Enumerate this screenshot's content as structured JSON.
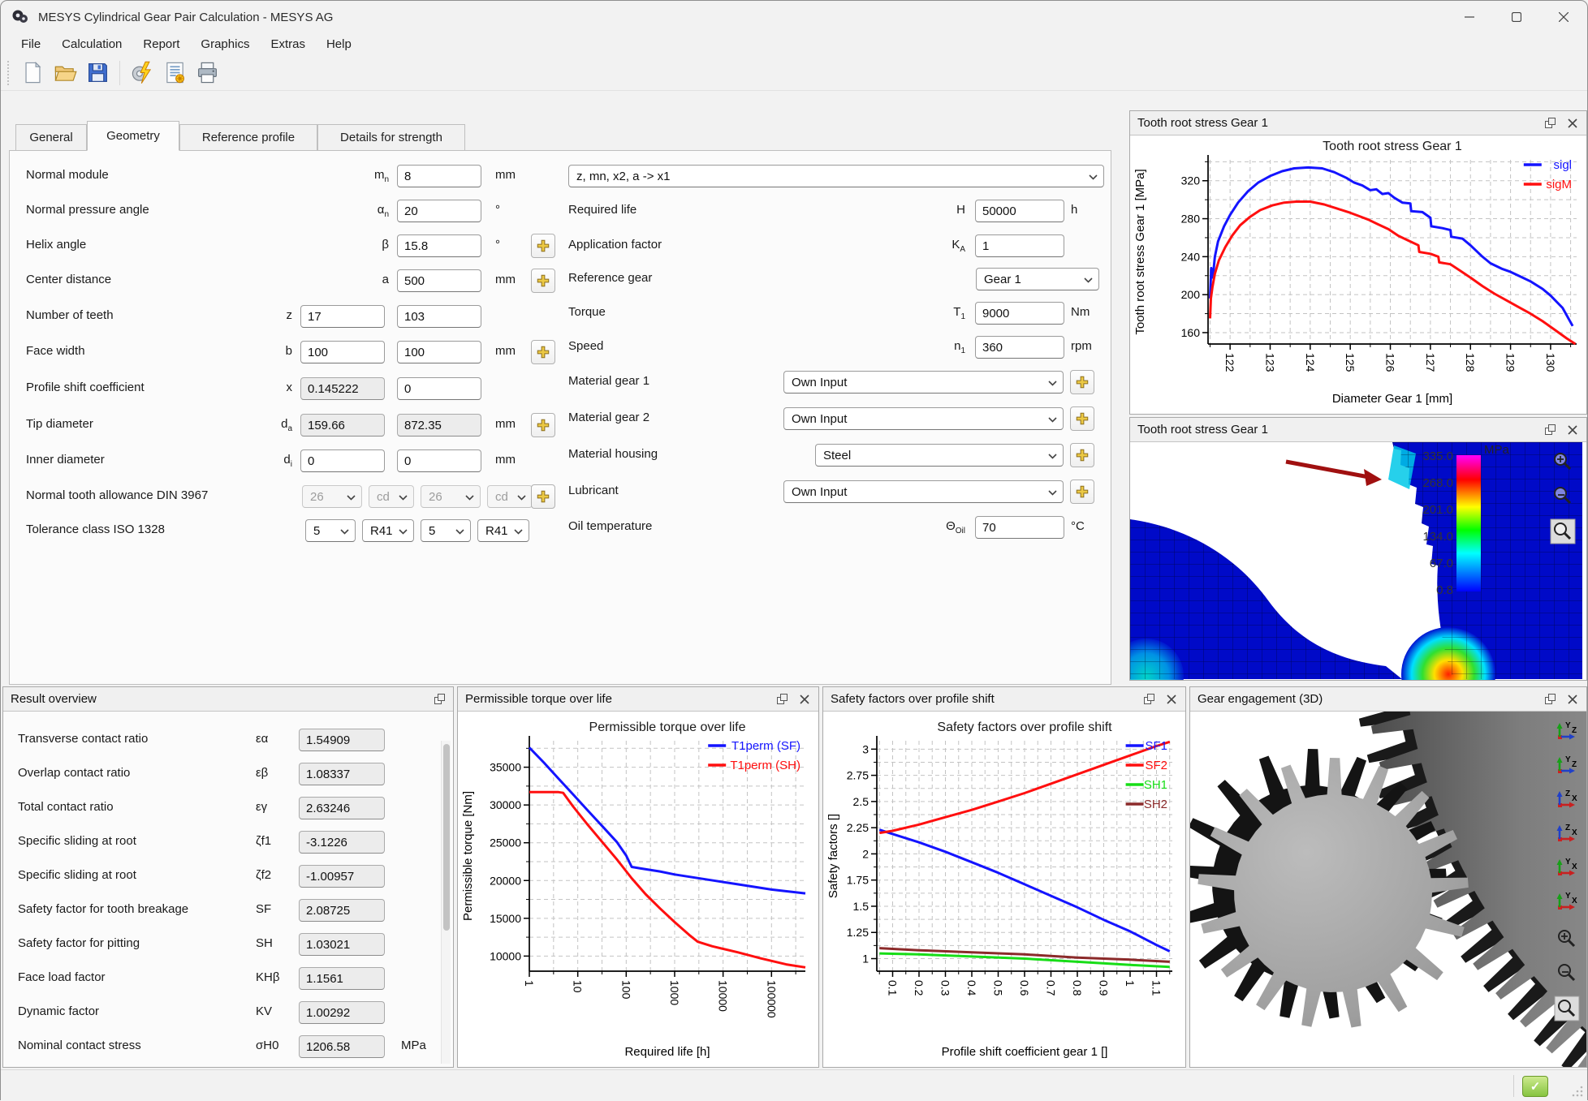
{
  "window": {
    "title": "MESYS Cylindrical Gear Pair Calculation - MESYS AG"
  },
  "menu": [
    "File",
    "Calculation",
    "Report",
    "Graphics",
    "Extras",
    "Help"
  ],
  "toolbar": [
    {
      "name": "new",
      "icon": "new-document-icon"
    },
    {
      "name": "open",
      "icon": "open-folder-icon"
    },
    {
      "name": "save",
      "icon": "save-icon"
    },
    {
      "name": "calculate",
      "icon": "calculate-lightning-icon"
    },
    {
      "name": "report",
      "icon": "report-document-icon"
    },
    {
      "name": "print",
      "icon": "print-icon"
    }
  ],
  "tabs": {
    "items": [
      "General",
      "Geometry",
      "Reference profile",
      "Details for strength"
    ],
    "active": "Geometry"
  },
  "form": {
    "calc_mode_dropdown": "z, mn, x2, a  -> x1",
    "left_rows": [
      {
        "label": "Normal module",
        "sym": {
          "t": "m",
          "s": "n"
        },
        "fields": [
          {
            "col": 2,
            "v": "8"
          }
        ],
        "unit": "mm",
        "plus": false
      },
      {
        "label": "Normal pressure angle",
        "sym": {
          "t": "α",
          "s": "n"
        },
        "fields": [
          {
            "col": 2,
            "v": "20"
          }
        ],
        "unit": "°",
        "plus": false
      },
      {
        "label": "Helix angle",
        "sym": {
          "t": "β",
          "s": ""
        },
        "fields": [
          {
            "col": 2,
            "v": "15.8"
          }
        ],
        "unit": "°",
        "plus": true
      },
      {
        "label": "Center distance",
        "sym": {
          "t": "a",
          "s": ""
        },
        "fields": [
          {
            "col": 2,
            "v": "500"
          }
        ],
        "unit": "mm",
        "plus": true
      },
      {
        "label": "Number of teeth",
        "sym": {
          "t": "z",
          "s": ""
        },
        "fields": [
          {
            "col": 1,
            "v": "17"
          },
          {
            "col": 2,
            "v": "103"
          }
        ],
        "unit": "",
        "plus": false
      },
      {
        "label": "Face width",
        "sym": {
          "t": "b",
          "s": ""
        },
        "fields": [
          {
            "col": 1,
            "v": "100"
          },
          {
            "col": 2,
            "v": "100"
          }
        ],
        "unit": "mm",
        "plus": true
      },
      {
        "label": "Profile shift coefficient",
        "sym": {
          "t": "x",
          "s": ""
        },
        "fields": [
          {
            "col": 1,
            "v": "0.145222",
            "ro": true
          },
          {
            "col": 2,
            "v": "0"
          }
        ],
        "unit": "",
        "plus": false
      },
      {
        "label": "Tip diameter",
        "sym": {
          "t": "d",
          "s": "a"
        },
        "fields": [
          {
            "col": 1,
            "v": "159.66",
            "ro": true
          },
          {
            "col": 2,
            "v": "872.35",
            "ro": true
          }
        ],
        "unit": "mm",
        "plus": true
      },
      {
        "label": "Inner diameter",
        "sym": {
          "t": "d",
          "s": "i"
        },
        "fields": [
          {
            "col": 1,
            "v": "0"
          },
          {
            "col": 2,
            "v": "0"
          }
        ],
        "unit": "mm",
        "plus": false
      },
      {
        "label": "Normal tooth allowance DIN 3967",
        "dropdowns": [
          "26",
          "cd",
          "26",
          "cd"
        ],
        "disabled": true,
        "plus": true
      },
      {
        "label": "Tolerance class ISO 1328",
        "dropdowns": [
          "5",
          "R41",
          "5",
          "R41"
        ],
        "disabled": false,
        "plus": false
      }
    ],
    "right_rows": [
      {
        "label": "Required life",
        "sym": {
          "t": "H",
          "s": ""
        },
        "type": "input",
        "v": "50000",
        "unit": "h"
      },
      {
        "label": "Application factor",
        "sym": {
          "t": "K",
          "s": "A"
        },
        "type": "input",
        "v": "1",
        "unit": ""
      },
      {
        "label": "Reference gear",
        "type": "select_small",
        "v": "Gear 1"
      },
      {
        "label": "Torque",
        "sym": {
          "t": "T",
          "s": "1"
        },
        "type": "input",
        "v": "9000",
        "unit": "Nm"
      },
      {
        "label": "Speed",
        "sym": {
          "t": "n",
          "s": "1"
        },
        "type": "input",
        "v": "360",
        "unit": "rpm"
      },
      {
        "label": "Material gear 1",
        "type": "select",
        "v": "Own Input",
        "plus": true
      },
      {
        "label": "Material gear 2",
        "type": "select",
        "v": "Own Input",
        "plus": true
      },
      {
        "label": "Material housing",
        "type": "select_indent",
        "v": "Steel",
        "plus": true
      },
      {
        "label": "Lubricant",
        "type": "select",
        "v": "Own Input",
        "plus": true
      },
      {
        "label": "Oil temperature",
        "sym": {
          "t": "Θ",
          "s": "Oil"
        },
        "type": "input",
        "v": "70",
        "unit": "°C"
      }
    ]
  },
  "results": {
    "title": "Result overview",
    "rows": [
      {
        "label": "Transverse contact ratio",
        "sym": "εα",
        "val": "1.54909",
        "unit": ""
      },
      {
        "label": "Overlap contact ratio",
        "sym": "εβ",
        "val": "1.08337",
        "unit": ""
      },
      {
        "label": "Total contact ratio",
        "sym": "εγ",
        "val": "2.63246",
        "unit": ""
      },
      {
        "label": "Specific sliding at root",
        "sym": "ζf1",
        "val": "-3.1226",
        "unit": ""
      },
      {
        "label": "Specific sliding at root",
        "sym": "ζf2",
        "val": "-1.00957",
        "unit": ""
      },
      {
        "label": "Safety factor for tooth breakage",
        "sym": "SF",
        "val": "2.08725",
        "unit": ""
      },
      {
        "label": "Safety factor for pitting",
        "sym": "SH",
        "val": "1.03021",
        "unit": ""
      },
      {
        "label": "Face load factor",
        "sym": "KHβ",
        "val": "1.1561",
        "unit": ""
      },
      {
        "label": "Dynamic factor",
        "sym": "KV",
        "val": "1.00292",
        "unit": ""
      },
      {
        "label": "Nominal contact stress",
        "sym": "σH0",
        "val": "1206.58",
        "unit": "MPa"
      }
    ]
  },
  "panels": {
    "root_stress_chart": "Tooth root stress Gear 1",
    "root_stress_fem": "Tooth root stress Gear 1",
    "torque": "Permissible torque over life",
    "safety": "Safety factors over profile shift",
    "gear3d": "Gear engagement (3D)"
  },
  "fem": {
    "unit": "MPa",
    "scale": [
      "335.0",
      "268.0",
      "201.0",
      "134.0",
      "67.0",
      "0.8"
    ]
  },
  "gear3d": {
    "axis_icons": [
      {
        "v": "Y",
        "h": "Z"
      },
      {
        "v": "Y",
        "h": "Z"
      },
      {
        "v": "Z",
        "h": "X"
      },
      {
        "v": "Z",
        "h": "X"
      },
      {
        "v": "Y",
        "h": "X"
      },
      {
        "v": "Y",
        "h": "X"
      }
    ],
    "zoom_icons": [
      "zoom-in",
      "zoom-out",
      "zoom-fit"
    ]
  },
  "chart_data": [
    {
      "id": "tooth-root-stress-chart",
      "type": "line",
      "title": "Tooth root stress Gear 1",
      "xlabel": "Diameter Gear 1 [mm]",
      "ylabel": "Tooth root stress Gear 1 [MPa]",
      "xlim": [
        121.45,
        130.65
      ],
      "ylim": [
        148,
        342
      ],
      "xticks": [
        122,
        123,
        124,
        125,
        126,
        127,
        128,
        129,
        130
      ],
      "xminor_step": 0.5,
      "yticks": [
        160,
        200,
        240,
        280,
        320
      ],
      "yminor_step": 20,
      "legend_position": "top-right",
      "series": [
        {
          "name": "sigl",
          "color": "#1414ff",
          "x": [
            121.5,
            121.53,
            121.57,
            121.62,
            121.7,
            121.85,
            122.0,
            122.2,
            122.45,
            122.7,
            123.0,
            123.3,
            123.6,
            123.95,
            124.3,
            124.6,
            124.9,
            125.1,
            125.3,
            125.5,
            125.65,
            125.8,
            125.95,
            126.1,
            126.3,
            126.5,
            126.52,
            126.8,
            127.0,
            127.02,
            127.3,
            127.5,
            127.52,
            127.8,
            128.0,
            128.3,
            128.5,
            128.8,
            129.0,
            129.3,
            129.5,
            129.8,
            130.0,
            130.3,
            130.55
          ],
          "y": [
            196,
            228,
            218,
            240,
            256,
            272,
            284,
            297,
            309,
            318,
            325,
            330,
            333,
            334,
            333,
            329,
            323,
            318,
            315,
            310,
            311,
            306,
            307,
            302,
            297,
            296,
            288,
            287,
            281,
            272,
            270,
            268,
            261,
            259,
            252,
            240,
            233,
            227,
            224,
            218,
            214,
            206,
            199,
            186,
            167
          ]
        },
        {
          "name": "sigM",
          "color": "#ff0f0f",
          "x": [
            121.5,
            121.52,
            121.56,
            121.62,
            121.72,
            121.88,
            122.05,
            122.25,
            122.5,
            122.75,
            123.05,
            123.35,
            123.65,
            124.0,
            124.35,
            124.65,
            124.95,
            125.2,
            125.45,
            125.7,
            125.95,
            126.2,
            126.45,
            126.7,
            126.72,
            127.0,
            127.2,
            127.22,
            127.5,
            127.75,
            128.0,
            128.3,
            128.6,
            128.9,
            129.2,
            129.5,
            129.8,
            130.1,
            130.4,
            130.62
          ],
          "y": [
            175,
            196,
            208,
            222,
            236,
            250,
            262,
            273,
            282,
            289,
            294,
            297,
            298,
            298,
            295,
            291,
            287,
            283,
            279,
            274,
            269,
            262,
            257,
            252,
            245,
            243,
            240,
            234,
            232,
            225,
            218,
            209,
            201,
            194,
            187,
            180,
            172,
            163,
            154,
            148
          ]
        }
      ]
    },
    {
      "id": "permissible-torque-chart",
      "type": "line",
      "xscale": "log",
      "title": "Permissible torque over life",
      "xlabel": "Required life [h]",
      "ylabel": "Permissible torque [Nm]",
      "xlim": [
        1,
        500000
      ],
      "ylim": [
        8000,
        38500
      ],
      "xticks": [
        1,
        10,
        100,
        1000,
        10000,
        100000
      ],
      "yticks": [
        10000,
        15000,
        20000,
        25000,
        30000,
        35000
      ],
      "yminor_step": 2500,
      "legend_position": "top-right",
      "series": [
        {
          "name": "T1perm (SF)",
          "color": "#1414ff",
          "x": [
            1,
            2,
            4,
            8,
            16,
            32,
            64,
            100,
            130,
            200,
            500,
            1000,
            5000,
            20000,
            100000,
            500000
          ],
          "y": [
            37600,
            35600,
            33500,
            31400,
            29300,
            27200,
            25100,
            23300,
            21800,
            21600,
            21200,
            20800,
            20100,
            19500,
            18800,
            18300
          ]
        },
        {
          "name": "T1perm (SH)",
          "color": "#ff0f0f",
          "x": [
            1,
            2,
            4,
            5,
            8,
            16,
            32,
            64,
            130,
            250,
            500,
            1000,
            2000,
            3000,
            6000,
            20000,
            60000,
            200000,
            500000
          ],
          "y": [
            31700,
            31700,
            31700,
            31600,
            29800,
            27400,
            25100,
            22800,
            20300,
            18200,
            16300,
            14500,
            12800,
            11900,
            11300,
            10500,
            9700,
            8900,
            8500
          ]
        }
      ]
    },
    {
      "id": "safety-factors-chart",
      "type": "line",
      "title": "Safety factors over profile shift",
      "xlabel": "Profile shift coefficient gear 1 []",
      "ylabel": "Safety factors []",
      "xlim": [
        0.04,
        1.16
      ],
      "ylim": [
        0.88,
        3.08
      ],
      "xticks": [
        0.1,
        0.2,
        0.3,
        0.4,
        0.5,
        0.6,
        0.7,
        0.8,
        0.9,
        1,
        1.1
      ],
      "xminor_step": 0.05,
      "yticks": [
        1,
        1.25,
        1.5,
        1.75,
        2,
        2.25,
        2.5,
        2.75,
        3
      ],
      "yminor_step": 0.125,
      "legend_position": "top-right",
      "series": [
        {
          "name": "SF1",
          "color": "#1414ff",
          "x": [
            0.05,
            0.1,
            0.2,
            0.3,
            0.4,
            0.5,
            0.6,
            0.7,
            0.8,
            0.9,
            1.0,
            1.1,
            1.15
          ],
          "y": [
            2.23,
            2.19,
            2.11,
            2.02,
            1.92,
            1.82,
            1.71,
            1.6,
            1.49,
            1.37,
            1.26,
            1.13,
            1.07
          ]
        },
        {
          "name": "SF2",
          "color": "#ff0f0f",
          "x": [
            0.05,
            0.1,
            0.2,
            0.3,
            0.4,
            0.5,
            0.6,
            0.7,
            0.8,
            0.9,
            1.0,
            1.1,
            1.15
          ],
          "y": [
            2.2,
            2.22,
            2.28,
            2.35,
            2.42,
            2.5,
            2.58,
            2.67,
            2.76,
            2.85,
            2.94,
            3.03,
            3.07
          ]
        },
        {
          "name": "SH1",
          "color": "#17dd17",
          "x": [
            0.05,
            0.2,
            0.4,
            0.6,
            0.8,
            1.0,
            1.15
          ],
          "y": [
            1.05,
            1.04,
            1.02,
            1.0,
            0.97,
            0.94,
            0.92
          ]
        },
        {
          "name": "SH2",
          "color": "#8b2a2a",
          "x": [
            0.05,
            0.2,
            0.4,
            0.6,
            0.8,
            1.0,
            1.15
          ],
          "y": [
            1.1,
            1.08,
            1.06,
            1.04,
            1.01,
            0.99,
            0.97
          ]
        }
      ]
    }
  ]
}
